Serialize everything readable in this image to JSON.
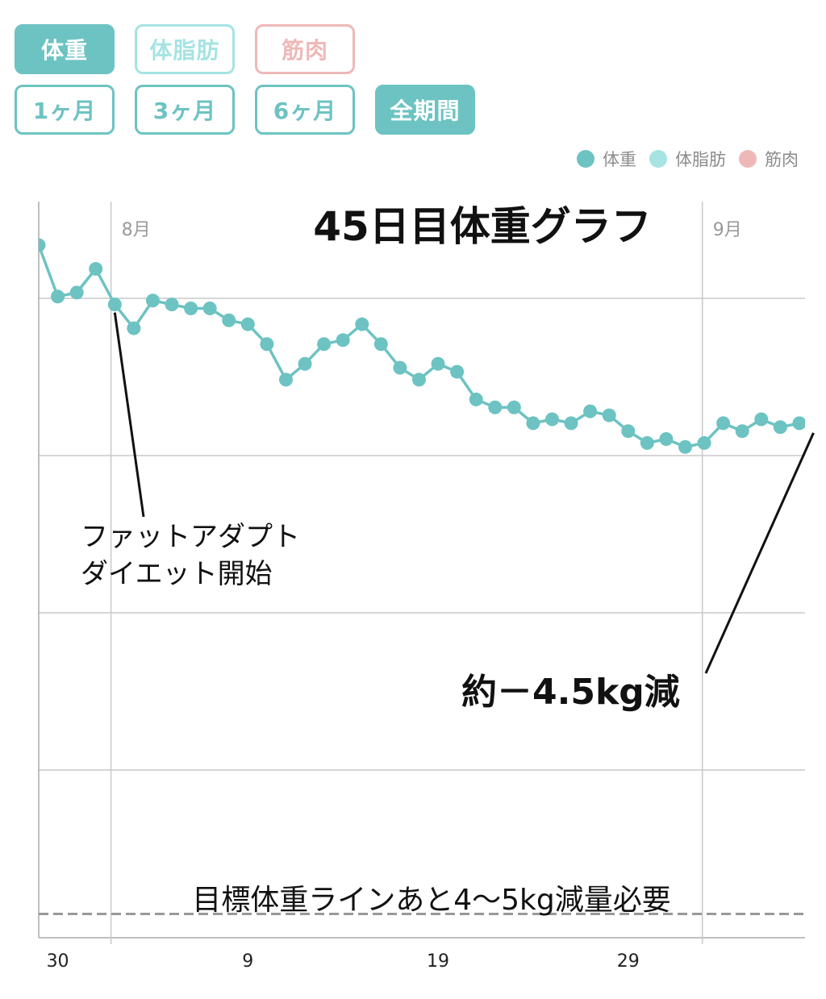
{
  "metric_tabs": [
    {
      "label": "体重",
      "color": "#6cc3c2",
      "active": true
    },
    {
      "label": "体脂肪",
      "color": "#a6e3e3",
      "active": false
    },
    {
      "label": "筋肉",
      "color": "#efb8b8",
      "active": false
    }
  ],
  "period_tabs": [
    {
      "label": "1ヶ月",
      "active": false
    },
    {
      "label": "3ヶ月",
      "active": false
    },
    {
      "label": "6ヶ月",
      "active": false
    },
    {
      "label": "全期間",
      "active": true
    }
  ],
  "legend": [
    {
      "label": "体重",
      "color": "#6cc3c2"
    },
    {
      "label": "体脂肪",
      "color": "#a6e3e3"
    },
    {
      "label": "筋肉",
      "color": "#efb8b8"
    }
  ],
  "chart_data": {
    "type": "line",
    "title": "45日目体重グラフ",
    "series_color": "#6cc3c2",
    "xlim": [
      -3,
      37.3
    ],
    "ylim": [
      0,
      9.3
    ],
    "x_tick_values": [
      -2,
      8,
      18,
      28
    ],
    "x_tick_labels": [
      "30",
      "9",
      "19",
      "29"
    ],
    "month_markers": [
      {
        "x": 0.8,
        "label": "8月"
      },
      {
        "x": 31.9,
        "label": "9月"
      }
    ],
    "x": [
      -4,
      -3,
      -2,
      -1,
      0,
      1,
      2,
      3,
      4,
      5,
      6,
      7,
      8,
      9,
      10,
      11,
      12,
      13,
      14,
      15,
      16,
      17,
      18,
      19,
      20,
      21,
      22,
      23,
      24,
      25,
      26,
      27,
      28,
      29,
      30,
      31,
      32,
      33,
      34,
      35,
      36,
      37,
      38
    ],
    "values": [
      9.0,
      8.75,
      8.1,
      8.15,
      8.45,
      8.0,
      7.7,
      8.05,
      8.0,
      7.95,
      7.95,
      7.8,
      7.75,
      7.5,
      7.05,
      7.25,
      7.5,
      7.55,
      7.75,
      7.5,
      7.2,
      7.05,
      7.25,
      7.15,
      6.8,
      6.7,
      6.7,
      6.5,
      6.55,
      6.5,
      6.65,
      6.6,
      6.4,
      6.25,
      6.3,
      6.2,
      6.25,
      6.5,
      6.4,
      6.55,
      6.45,
      6.5,
      6.5
    ],
    "target_line": 0.3,
    "annotations": [
      {
        "text_lines": [
          "ファットアダプト",
          "ダイエット開始"
        ],
        "point_x": 1
      },
      {
        "text_lines": [
          "約－4.5kg減"
        ],
        "point_x": 38
      }
    ],
    "target_label": "目標体重ラインあと4～5kg減量必要"
  }
}
